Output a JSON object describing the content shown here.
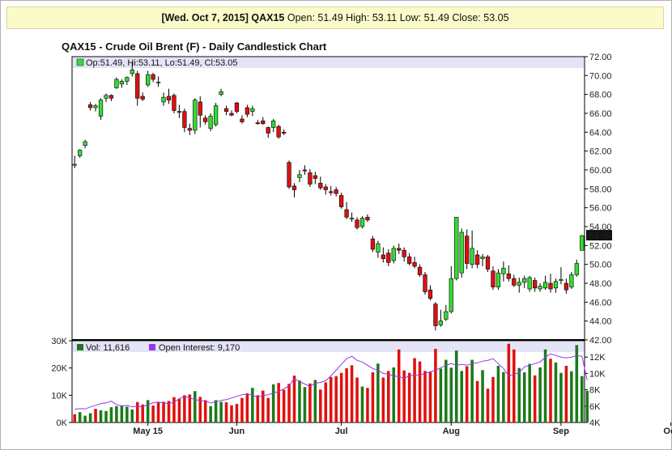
{
  "header": {
    "date": "[Wed. Oct 7, 2015]",
    "symbol": "QAX15",
    "open_label": "Open:",
    "open": "51.49",
    "high_label": "High:",
    "high": "53.11",
    "low_label": "Low:",
    "low": "51.49",
    "close_label": "Close:",
    "close": "53.05"
  },
  "title": "QAX15 - Crude Oil Brent (F) - Daily Candlestick Chart",
  "price_legend": "Op:51.49, Hi:53.11, Lo:51.49, Cl:53.05",
  "volume_legend": "Vol: 11,616",
  "oi_legend": "Open Interest: 9,170",
  "last_price_label": "53.05",
  "colors": {
    "up": "#33dd33",
    "down": "#dd1111",
    "vol_up": "#1b7a1b",
    "vol_down": "#e01010",
    "oi_line": "#9933ee",
    "legend_bg": "#e4e4f7",
    "price_marker": "#111111"
  },
  "chart_data": [
    {
      "type": "candlestick",
      "title": "QAX15 - Crude Oil Brent (F) - Daily Candlestick Chart",
      "ylim": [
        42,
        72
      ],
      "y_ticks": [
        "42.00",
        "44.00",
        "46.00",
        "48.00",
        "50.00",
        "52.00",
        "54.00",
        "56.00",
        "58.00",
        "60.00",
        "62.00",
        "64.00",
        "66.00",
        "68.00",
        "70.00",
        "72.00"
      ],
      "x_labels": [
        {
          "label": "May 15",
          "index": 14
        },
        {
          "label": "Jun",
          "index": 31
        },
        {
          "label": "Jul",
          "index": 51
        },
        {
          "label": "Aug",
          "index": 72
        },
        {
          "label": "Sep",
          "index": 93
        },
        {
          "label": "Oct",
          "index": 114
        }
      ],
      "candles": [
        [
          60.5,
          61.5,
          60.2,
          60.6
        ],
        [
          61.5,
          62.2,
          61.3,
          62.1
        ],
        [
          62.6,
          63.2,
          62.3,
          63.0
        ],
        [
          66.9,
          67.2,
          66.3,
          66.6
        ],
        [
          66.6,
          67.0,
          66.2,
          66.8
        ],
        [
          65.7,
          67.6,
          65.3,
          67.4
        ],
        [
          67.6,
          68.1,
          67.2,
          67.9
        ],
        [
          67.9,
          68.0,
          67.3,
          67.6
        ],
        [
          68.7,
          69.8,
          68.6,
          69.6
        ],
        [
          69.1,
          69.6,
          68.7,
          69.4
        ],
        [
          69.4,
          69.9,
          69.0,
          69.8
        ],
        [
          70.2,
          71.4,
          69.9,
          70.6
        ],
        [
          70.2,
          70.5,
          66.8,
          67.6
        ],
        [
          67.8,
          68.2,
          67.3,
          67.5
        ],
        [
          69.0,
          70.5,
          68.8,
          70.1
        ],
        [
          70.1,
          70.3,
          69.3,
          69.6
        ],
        [
          69.3,
          69.9,
          68.8,
          69.3
        ],
        [
          67.2,
          68.2,
          66.8,
          67.7
        ],
        [
          67.8,
          68.6,
          67.0,
          67.4
        ],
        [
          67.9,
          68.1,
          66.0,
          66.3
        ],
        [
          66.2,
          66.9,
          65.5,
          66.1
        ],
        [
          66.2,
          66.5,
          64.0,
          64.5
        ],
        [
          64.4,
          64.9,
          63.7,
          64.2
        ],
        [
          64.2,
          67.6,
          63.8,
          67.4
        ],
        [
          67.2,
          67.8,
          64.5,
          65.8
        ],
        [
          65.5,
          65.8,
          64.8,
          65.1
        ],
        [
          64.4,
          66.0,
          64.1,
          65.7
        ],
        [
          64.8,
          67.1,
          64.6,
          66.8
        ],
        [
          68.0,
          68.6,
          67.8,
          68.3
        ],
        [
          66.5,
          66.8,
          65.8,
          66.2
        ],
        [
          66.0,
          66.3,
          65.7,
          65.8
        ],
        [
          67.1,
          67.2,
          66.0,
          66.2
        ],
        [
          65.4,
          65.8,
          64.9,
          65.1
        ],
        [
          66.6,
          66.9,
          65.6,
          65.9
        ],
        [
          66.2,
          66.8,
          65.7,
          66.5
        ],
        [
          65.0,
          65.3,
          64.8,
          64.9
        ],
        [
          65.2,
          65.6,
          64.8,
          64.9
        ],
        [
          64.5,
          64.6,
          63.4,
          63.9
        ],
        [
          64.5,
          65.4,
          64.0,
          65.2
        ],
        [
          64.6,
          64.8,
          63.3,
          63.5
        ],
        [
          64.0,
          64.3,
          63.7,
          63.9
        ],
        [
          60.8,
          61.0,
          58.0,
          58.2
        ],
        [
          58.3,
          58.6,
          57.1,
          57.9
        ],
        [
          59.2,
          60.0,
          58.7,
          59.5
        ],
        [
          60.0,
          60.5,
          59.5,
          59.9
        ],
        [
          59.7,
          60.1,
          58.2,
          58.5
        ],
        [
          59.4,
          59.8,
          58.5,
          59.1
        ],
        [
          58.6,
          59.3,
          57.9,
          58.1
        ],
        [
          58.2,
          58.5,
          57.4,
          57.9
        ],
        [
          57.7,
          58.3,
          57.3,
          57.6
        ],
        [
          57.9,
          58.2,
          57.2,
          57.5
        ],
        [
          57.3,
          57.6,
          55.9,
          56.1
        ],
        [
          55.8,
          56.6,
          54.8,
          55.0
        ],
        [
          54.8,
          55.5,
          54.5,
          54.9
        ],
        [
          54.7,
          55.0,
          53.7,
          53.9
        ],
        [
          54.0,
          55.1,
          53.8,
          54.9
        ],
        [
          55.0,
          55.3,
          54.5,
          54.7
        ],
        [
          52.7,
          53.0,
          51.3,
          51.6
        ],
        [
          51.3,
          52.5,
          50.7,
          52.2
        ],
        [
          51.0,
          51.8,
          50.2,
          50.6
        ],
        [
          51.2,
          51.6,
          49.8,
          50.2
        ],
        [
          50.4,
          52.0,
          50.1,
          51.7
        ],
        [
          51.7,
          52.2,
          51.1,
          51.5
        ],
        [
          51.5,
          51.8,
          50.3,
          50.8
        ],
        [
          50.8,
          51.2,
          49.9,
          50.1
        ],
        [
          50.2,
          50.8,
          49.6,
          49.8
        ],
        [
          49.7,
          50.0,
          48.7,
          48.9
        ],
        [
          48.9,
          49.2,
          46.8,
          47.1
        ],
        [
          47.3,
          47.8,
          46.2,
          46.4
        ],
        [
          45.8,
          46.0,
          43.0,
          43.5
        ],
        [
          43.6,
          45.2,
          43.4,
          44.0
        ],
        [
          44.2,
          45.7,
          44.0,
          45.0
        ],
        [
          45.0,
          49.8,
          44.8,
          48.5
        ],
        [
          48.5,
          54.7,
          48.3,
          55.0
        ],
        [
          49.1,
          53.8,
          48.6,
          53.4
        ],
        [
          53.0,
          53.7,
          49.5,
          50.1
        ],
        [
          50.0,
          53.6,
          49.6,
          51.7
        ],
        [
          51.0,
          51.5,
          49.6,
          50.0
        ],
        [
          50.6,
          51.1,
          49.8,
          50.8
        ],
        [
          50.8,
          51.0,
          49.2,
          49.5
        ],
        [
          49.3,
          49.8,
          47.3,
          47.6
        ],
        [
          47.6,
          49.5,
          47.3,
          49.1
        ],
        [
          49.0,
          50.3,
          48.2,
          49.6
        ],
        [
          49.0,
          49.9,
          48.2,
          48.5
        ],
        [
          48.5,
          48.9,
          47.6,
          47.8
        ],
        [
          47.8,
          48.6,
          47.0,
          48.1
        ],
        [
          48.1,
          48.8,
          47.5,
          48.5
        ],
        [
          47.4,
          48.8,
          47.1,
          48.6
        ],
        [
          48.3,
          48.6,
          47.1,
          47.5
        ],
        [
          47.4,
          48.0,
          47.1,
          47.7
        ],
        [
          47.5,
          48.8,
          47.3,
          48.1
        ],
        [
          48.0,
          49.0,
          47.0,
          47.4
        ],
        [
          47.5,
          48.5,
          47.0,
          48.2
        ],
        [
          48.3,
          49.7,
          47.9,
          48.4
        ],
        [
          48.0,
          48.5,
          46.9,
          47.3
        ],
        [
          47.6,
          49.2,
          47.4,
          48.9
        ],
        [
          48.9,
          50.5,
          48.7,
          50.1
        ],
        [
          51.49,
          53.11,
          51.49,
          53.05
        ]
      ]
    },
    {
      "type": "bar",
      "title": "",
      "ylim": [
        0,
        30000
      ],
      "y_ticks_left": [
        "0K",
        "10K",
        "20K",
        "30K"
      ],
      "y_ticks_right": [
        "4K",
        "6K",
        "8K",
        "10K",
        "12K"
      ],
      "legend": [
        "Vol: 11,616",
        "Open Interest: 9,170"
      ],
      "volume": [
        3000,
        3800,
        2500,
        3400,
        5000,
        4500,
        4200,
        5600,
        6000,
        6300,
        5800,
        4800,
        7500,
        6600,
        8200,
        6200,
        7400,
        7600,
        7900,
        9300,
        8700,
        10000,
        10300,
        11500,
        9400,
        8200,
        6000,
        8200,
        7600,
        7400,
        6300,
        6800,
        9000,
        10700,
        12700,
        10000,
        11700,
        9000,
        14000,
        14500,
        12000,
        14200,
        17200,
        15400,
        13000,
        14300,
        15600,
        12100,
        14700,
        16700,
        17000,
        18200,
        19900,
        21000,
        16500,
        13200,
        12700,
        18400,
        21600,
        16500,
        18900,
        20200,
        26800,
        19100,
        18200,
        23600,
        22400,
        18900,
        18500,
        27000,
        19800,
        23000,
        20100,
        26400,
        18900,
        20600,
        23000,
        15200,
        19200,
        12400,
        16700,
        20800,
        18500,
        28900,
        26800,
        20000,
        18400,
        21500,
        17300,
        20200,
        26800,
        23400,
        22000,
        18200,
        20800,
        18800,
        28400,
        17000,
        11616
      ],
      "volume_up": [
        false,
        true,
        true,
        true,
        false,
        true,
        true,
        true,
        true,
        true,
        true,
        true,
        false,
        false,
        true,
        false,
        false,
        false,
        false,
        false,
        false,
        false,
        false,
        true,
        false,
        false,
        true,
        true,
        true,
        false,
        false,
        false,
        false,
        false,
        true,
        false,
        false,
        false,
        true,
        false,
        false,
        false,
        false,
        true,
        true,
        false,
        true,
        false,
        false,
        false,
        false,
        false,
        false,
        false,
        false,
        true,
        false,
        false,
        true,
        false,
        false,
        true,
        false,
        false,
        false,
        false,
        false,
        false,
        false,
        false,
        true,
        true,
        true,
        true,
        true,
        false,
        true,
        false,
        true,
        false,
        false,
        true,
        true,
        false,
        false,
        true,
        true,
        true,
        false,
        true,
        true,
        false,
        true,
        true,
        false,
        true,
        true,
        true,
        true
      ],
      "open_interest": [
        5600,
        5700,
        5650,
        5900,
        6100,
        6300,
        6400,
        6600,
        6200,
        6000,
        6100,
        5900,
        6000,
        5900,
        6200,
        6400,
        6500,
        6400,
        6300,
        6500,
        6900,
        7200,
        7000,
        6800,
        6700,
        6600,
        6400,
        6500,
        6700,
        6800,
        7000,
        7200,
        7400,
        7500,
        7300,
        7100,
        7300,
        7400,
        7600,
        7800,
        8100,
        8500,
        9400,
        9000,
        8700,
        8400,
        8800,
        8900,
        9100,
        9700,
        10400,
        11100,
        11800,
        12100,
        11600,
        11400,
        11000,
        10600,
        10400,
        10000,
        9900,
        9700,
        9600,
        9400,
        9700,
        9800,
        9800,
        10000,
        10200,
        10400,
        10700,
        11000,
        11200,
        11000,
        11100,
        11000,
        11200,
        11300,
        11500,
        11600,
        11800,
        11200,
        10600,
        9700,
        9900,
        10100,
        10800,
        11000,
        11200,
        11400,
        12000,
        12400,
        12200,
        12000,
        11900,
        12000,
        12200,
        12100,
        9170
      ],
      "x_labels": [
        "May 15",
        "Jun",
        "Jul",
        "Aug",
        "Sep",
        "Oct"
      ]
    }
  ]
}
